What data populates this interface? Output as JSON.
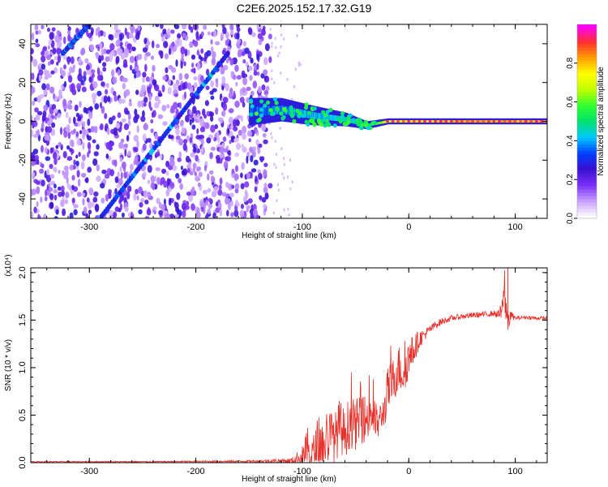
{
  "page": {
    "title": "C2E6.2025.152.17.32.G19"
  },
  "chart_data": [
    {
      "type": "heatmap",
      "xlabel": "Height of straight line (km)",
      "ylabel": "Frequency (Hz)",
      "xlim": [
        -355,
        130
      ],
      "ylim": [
        -50,
        50
      ],
      "xticks": [
        -300,
        -200,
        -100,
        0,
        100
      ],
      "yticks": [
        -40,
        -20,
        0,
        20,
        40
      ],
      "colorbar": {
        "label": "Normalized spectral amplitude",
        "range": [
          0,
          1
        ],
        "ticks": [
          "0.0",
          "0.2",
          "0.4",
          "0.6",
          "0.8"
        ],
        "tick_values": [
          0,
          0.2,
          0.4,
          0.6,
          0.8
        ],
        "colors": [
          "#ffffff",
          "#c8a0ff",
          "#7b2ff7",
          "#3a10d0",
          "#0040ff",
          "#00c8ff",
          "#00e070",
          "#30ff30",
          "#c0ff00",
          "#ffff00",
          "#ffa000",
          "#ff3030",
          "#ff00ff"
        ]
      },
      "features": {
        "noise_region_x": [
          -355,
          -130
        ],
        "diagonal_tracks": [
          {
            "x": [
              -325,
              -300
            ],
            "y": [
              35,
              50
            ]
          },
          {
            "x": [
              -290,
              -170
            ],
            "y": [
              -50,
              35
            ]
          }
        ],
        "carrier_band": [
          {
            "x": -150,
            "y": 5,
            "spread": 14,
            "amp": 0.35
          },
          {
            "x": -120,
            "y": 6,
            "spread": 12,
            "amp": 0.4
          },
          {
            "x": -90,
            "y": 3,
            "spread": 10,
            "amp": 0.45
          },
          {
            "x": -60,
            "y": 1,
            "spread": 7,
            "amp": 0.5
          },
          {
            "x": -40,
            "y": -2,
            "spread": 4,
            "amp": 0.55
          },
          {
            "x": -20,
            "y": 0,
            "spread": 3,
            "amp": 0.8
          },
          {
            "x": 0,
            "y": 0,
            "spread": 3,
            "amp": 0.85
          },
          {
            "x": 50,
            "y": 0,
            "spread": 3,
            "amp": 0.95
          },
          {
            "x": 130,
            "y": 0,
            "spread": 3,
            "amp": 0.95
          }
        ]
      }
    },
    {
      "type": "line",
      "xlabel": "Height of straight line (km)",
      "ylabel": "SNR (10 * v/v)",
      "y_multiplier": "(x10⁴)",
      "xlim": [
        -355,
        130
      ],
      "ylim": [
        0,
        2.05
      ],
      "xticks": [
        -300,
        -200,
        -100,
        0,
        100
      ],
      "yticks": [
        0.0,
        0.5,
        1.0,
        1.5,
        2.0
      ],
      "line_color": "#e8302a",
      "series": [
        {
          "x": [
            -355,
            -250,
            -150,
            -110,
            -100,
            -95,
            -90,
            -85,
            -80,
            -75,
            -70,
            -65,
            -60,
            -55,
            -50,
            -45,
            -40,
            -35,
            -30,
            -25,
            -22,
            -20,
            -15,
            -10,
            -5,
            0,
            5,
            10,
            15,
            20,
            25,
            30,
            35,
            40,
            50,
            60,
            70,
            80,
            85,
            88,
            90,
            92,
            94,
            96,
            100,
            110,
            120,
            130
          ],
          "y": [
            0.01,
            0.01,
            0.015,
            0.02,
            0.06,
            0.12,
            0.08,
            0.2,
            0.15,
            0.3,
            0.25,
            0.38,
            0.3,
            0.45,
            0.38,
            0.5,
            0.45,
            0.55,
            0.4,
            0.5,
            0.6,
            0.75,
            0.85,
            1.0,
            0.95,
            1.1,
            1.2,
            1.3,
            1.35,
            1.4,
            1.45,
            1.48,
            1.5,
            1.52,
            1.54,
            1.55,
            1.56,
            1.57,
            1.56,
            1.6,
            1.75,
            1.55,
            1.5,
            1.55,
            1.52,
            1.53,
            1.52,
            1.52
          ],
          "noise": [
            0.006,
            0.006,
            0.01,
            0.03,
            0.12,
            0.25,
            0.2,
            0.3,
            0.25,
            0.3,
            0.25,
            0.3,
            0.25,
            0.3,
            0.25,
            0.3,
            0.25,
            0.3,
            0.2,
            0.15,
            0.2,
            0.25,
            0.25,
            0.25,
            0.25,
            0.2,
            0.15,
            0.1,
            0.06,
            0.05,
            0.04,
            0.04,
            0.03,
            0.03,
            0.03,
            0.03,
            0.03,
            0.03,
            0.05,
            0.15,
            0.25,
            0.2,
            0.1,
            0.05,
            0.02,
            0.02,
            0.02,
            0.02
          ]
        }
      ]
    }
  ]
}
